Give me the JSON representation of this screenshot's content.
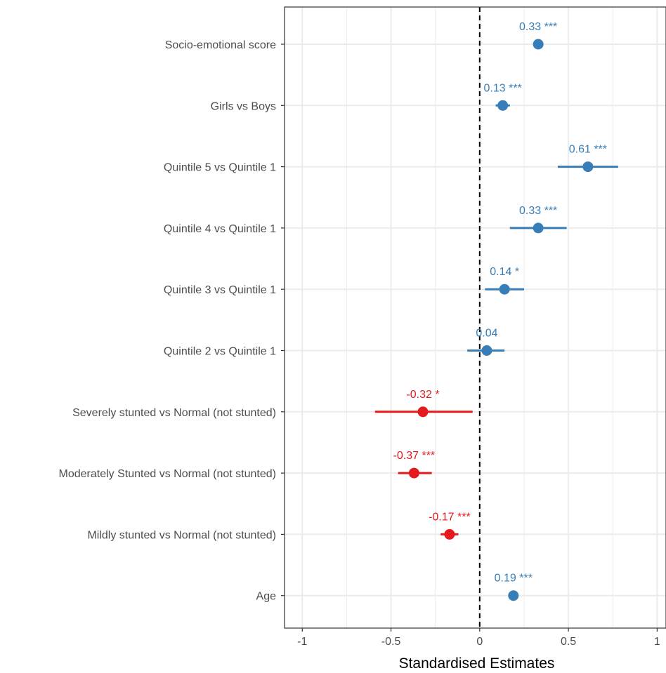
{
  "chart_data": {
    "type": "forest",
    "title": "",
    "xlabel": "Standardised Estimates",
    "ylabel": "",
    "xlim": [
      -1.1,
      1.05
    ],
    "xticks": [
      -1,
      -0.5,
      0,
      0.5,
      1
    ],
    "xtick_labels": [
      "-1",
      "-0.5",
      "0",
      "0.5",
      "1"
    ],
    "reference_line": 0,
    "grid": true,
    "colors": {
      "positive": "#377eb8",
      "negative": "#e41a1c"
    },
    "terms": [
      {
        "label": "Socio-emotional score",
        "estimate": 0.33,
        "lower": 0.31,
        "upper": 0.35,
        "annotation": "0.33 ***"
      },
      {
        "label": "Girls vs Boys",
        "estimate": 0.13,
        "lower": 0.09,
        "upper": 0.17,
        "annotation": "0.13 ***"
      },
      {
        "label": "Quintile 5 vs Quintile 1",
        "estimate": 0.61,
        "lower": 0.44,
        "upper": 0.78,
        "annotation": "0.61 ***"
      },
      {
        "label": "Quintile 4 vs Quintile 1",
        "estimate": 0.33,
        "lower": 0.17,
        "upper": 0.49,
        "annotation": "0.33 ***"
      },
      {
        "label": "Quintile 3 vs Quintile 1",
        "estimate": 0.14,
        "lower": 0.03,
        "upper": 0.25,
        "annotation": "0.14 *"
      },
      {
        "label": "Quintile 2 vs Quintile 1",
        "estimate": 0.04,
        "lower": -0.07,
        "upper": 0.14,
        "annotation": "0.04"
      },
      {
        "label": "Severely stunted vs Normal (not stunted)",
        "estimate": -0.32,
        "lower": -0.59,
        "upper": -0.04,
        "annotation": "-0.32 *"
      },
      {
        "label": "Moderately Stunted vs Normal (not stunted)",
        "estimate": -0.37,
        "lower": -0.46,
        "upper": -0.27,
        "annotation": "-0.37 ***"
      },
      {
        "label": "Mildly stunted vs Normal (not stunted)",
        "estimate": -0.17,
        "lower": -0.22,
        "upper": -0.12,
        "annotation": "-0.17 ***"
      },
      {
        "label": "Age",
        "estimate": 0.19,
        "lower": 0.17,
        "upper": 0.21,
        "annotation": "0.19 ***"
      }
    ]
  }
}
